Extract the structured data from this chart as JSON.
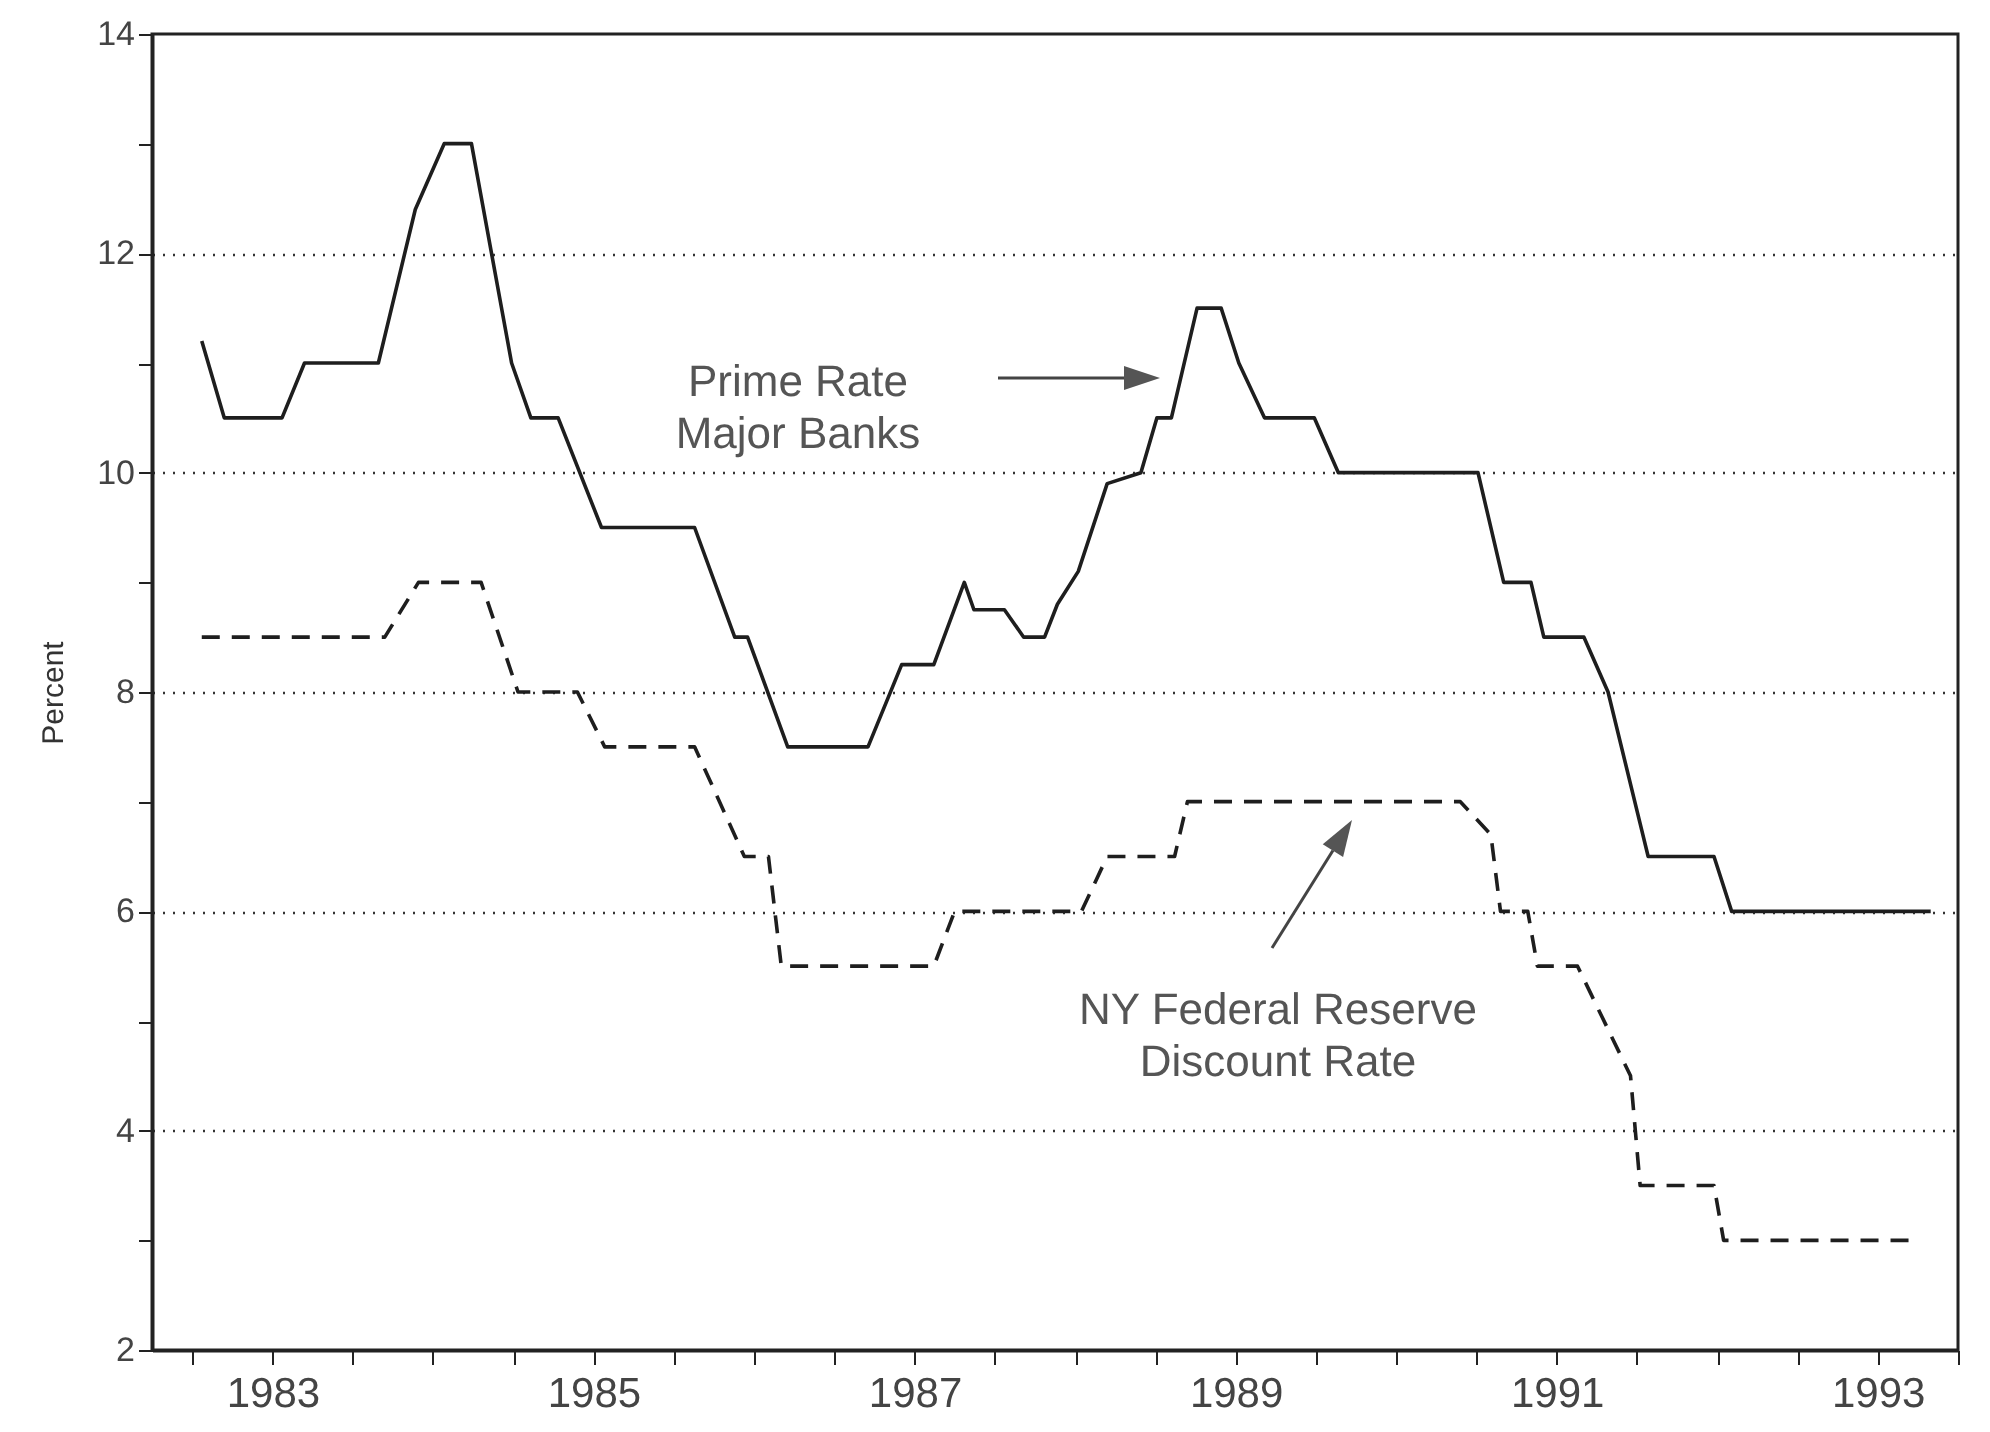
{
  "chart_data": {
    "type": "line",
    "ylabel": "Percent",
    "xlim": [
      1982.75,
      1994.0
    ],
    "xticks": [
      {
        "value": 1983,
        "label": null
      },
      {
        "value": 1983.5,
        "label": "1983"
      },
      {
        "value": 1984,
        "label": null
      },
      {
        "value": 1984.5,
        "label": null
      },
      {
        "value": 1985,
        "label": null
      },
      {
        "value": 1985.5,
        "label": "1985"
      },
      {
        "value": 1986,
        "label": null
      },
      {
        "value": 1986.5,
        "label": null
      },
      {
        "value": 1987,
        "label": null
      },
      {
        "value": 1987.5,
        "label": "1987"
      },
      {
        "value": 1988,
        "label": null
      },
      {
        "value": 1988.5,
        "label": null
      },
      {
        "value": 1989,
        "label": null
      },
      {
        "value": 1989.5,
        "label": "1989"
      },
      {
        "value": 1990,
        "label": null
      },
      {
        "value": 1990.5,
        "label": null
      },
      {
        "value": 1991,
        "label": null
      },
      {
        "value": 1991.5,
        "label": "1991"
      },
      {
        "value": 1992,
        "label": null
      },
      {
        "value": 1992.5,
        "label": null
      },
      {
        "value": 1993,
        "label": null
      },
      {
        "value": 1993.5,
        "label": "1993"
      },
      {
        "value": 1994,
        "label": null
      }
    ],
    "ylim": [
      2,
      14
    ],
    "yticks": [
      2,
      {
        "value": 3,
        "label": null
      },
      4,
      {
        "value": 5,
        "label": null
      },
      6,
      {
        "value": 7,
        "label": null
      },
      8,
      {
        "value": 9,
        "label": null
      },
      10,
      {
        "value": 11,
        "label": null
      },
      12,
      {
        "value": 13,
        "label": null
      },
      14
    ],
    "grid": "y",
    "marker": "none",
    "series": [
      {
        "color": "#1e1e1e",
        "line_style": "solid",
        "x": [
          1983.06,
          1983.2,
          1983.56,
          1983.7,
          1984.16,
          1984.39,
          1984.57,
          1984.74,
          1984.99,
          1985.11,
          1985.28,
          1985.55,
          1986.13,
          1986.38,
          1986.46,
          1986.71,
          1987.21,
          1987.42,
          1987.62,
          1987.81,
          1987.87,
          1988.06,
          1988.18,
          1988.31,
          1988.39,
          1988.52,
          1988.7,
          1988.91,
          1989.01,
          1989.1,
          1989.26,
          1989.41,
          1989.52,
          1989.68,
          1989.99,
          1990.14,
          1991.01,
          1991.17,
          1991.34,
          1991.42,
          1991.67,
          1991.82,
          1992.02,
          1992.07,
          1992.48,
          1992.59,
          1993.83
        ],
        "values": [
          11.2,
          10.5,
          10.5,
          11.0,
          11.0,
          12.4,
          13.0,
          13.0,
          11.0,
          10.5,
          10.5,
          9.5,
          9.5,
          8.5,
          8.5,
          7.5,
          7.5,
          8.25,
          8.25,
          9.0,
          8.75,
          8.75,
          8.5,
          8.5,
          8.8,
          9.1,
          9.9,
          10.0,
          10.5,
          10.5,
          11.5,
          11.5,
          11.0,
          10.5,
          10.5,
          10.0,
          10.0,
          9.0,
          9.0,
          8.5,
          8.5,
          8.0,
          6.8,
          6.5,
          6.5,
          6.0,
          6.0
        ]
      },
      {
        "color": "#1e1e1e",
        "line_style": "dashed",
        "x": [
          1983.06,
          1984.2,
          1984.41,
          1984.8,
          1985.03,
          1985.4,
          1985.57,
          1986.13,
          1986.44,
          1986.59,
          1986.67,
          1987.62,
          1987.75,
          1988.54,
          1988.7,
          1989.12,
          1989.2,
          1990.9,
          1991.09,
          1991.15,
          1991.32,
          1991.38,
          1991.63,
          1991.96,
          1992.02,
          1992.48,
          1992.54,
          1993.73
        ],
        "values": [
          8.5,
          8.5,
          9.0,
          9.0,
          8.0,
          8.0,
          7.5,
          7.5,
          6.5,
          6.5,
          5.5,
          5.5,
          6.0,
          6.0,
          6.5,
          6.5,
          7.0,
          7.0,
          6.7,
          6.0,
          6.0,
          5.5,
          5.5,
          4.5,
          3.5,
          3.5,
          3.0,
          3.0
        ]
      }
    ],
    "annotations": [
      "Prime Rate\nMajor Banks",
      "NY Federal Reserve\nDiscount Rate"
    ]
  }
}
